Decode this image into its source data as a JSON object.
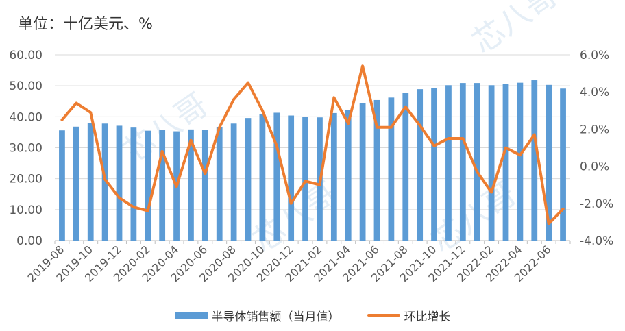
{
  "header": {
    "unit_label": "单位：十亿美元、%"
  },
  "legend": {
    "bar_label": "半导体销售额（当月值）",
    "line_label": "环比增长"
  },
  "colors": {
    "bar": "#5b9bd5",
    "line": "#ed7d31",
    "grid": "#d9d9d9",
    "axis": "#bfbfbf",
    "text": "#595959",
    "watermark": "#cfe0ee"
  },
  "watermark": "芯八哥",
  "chart_data": {
    "type": "bar",
    "x": [
      "2019-08",
      "2019-09",
      "2019-10",
      "2019-11",
      "2019-12",
      "2020-01",
      "2020-02",
      "2020-03",
      "2020-04",
      "2020-05",
      "2020-06",
      "2020-07",
      "2020-08",
      "2020-09",
      "2020-10",
      "2020-11",
      "2020-12",
      "2021-01",
      "2021-02",
      "2021-03",
      "2021-04",
      "2021-05",
      "2021-06",
      "2021-07",
      "2021-08",
      "2021-09",
      "2021-10",
      "2021-11",
      "2021-12",
      "2022-01",
      "2022-02",
      "2022-03",
      "2022-04",
      "2022-05",
      "2022-06",
      "2022-07"
    ],
    "x_tick_labels": [
      "2019-08",
      "2019-10",
      "2019-12",
      "2020-02",
      "2020-04",
      "2020-06",
      "2020-08",
      "2020-10",
      "2020-12",
      "2021-02",
      "2021-04",
      "2021-06",
      "2021-08",
      "2021-10",
      "2021-12",
      "2022-02",
      "2022-04",
      "2022-06"
    ],
    "series": [
      {
        "name": "半导体销售额（当月值）",
        "type": "bar",
        "axis": "left",
        "values": [
          35.6,
          36.8,
          38.0,
          37.8,
          37.1,
          36.5,
          35.5,
          35.7,
          35.3,
          35.9,
          35.8,
          36.6,
          37.8,
          39.6,
          40.8,
          41.3,
          40.4,
          40.0,
          39.8,
          41.2,
          42.2,
          44.3,
          45.4,
          46.2,
          47.8,
          48.9,
          49.3,
          50.2,
          50.9,
          50.9,
          50.2,
          50.6,
          51.0,
          51.8,
          50.3,
          49.1
        ]
      },
      {
        "name": "环比增长",
        "type": "line",
        "axis": "right",
        "values": [
          2.5,
          3.4,
          2.9,
          -0.7,
          -1.7,
          -2.2,
          -2.4,
          0.8,
          -1.1,
          1.4,
          -0.4,
          2.1,
          3.6,
          4.5,
          3.0,
          1.1,
          -2.0,
          -0.8,
          -1.0,
          3.7,
          2.3,
          5.4,
          2.1,
          2.1,
          3.2,
          2.2,
          1.1,
          1.5,
          1.5,
          -0.3,
          -1.4,
          1.0,
          0.6,
          1.7,
          -3.1,
          -2.3
        ]
      }
    ],
    "y_left": {
      "min": 0,
      "max": 60,
      "step": 10,
      "tick_labels": [
        "0.00",
        "10.00",
        "20.00",
        "30.00",
        "40.00",
        "50.00",
        "60.00"
      ]
    },
    "y_right": {
      "min": -4,
      "max": 6,
      "step": 2,
      "tick_labels": [
        "-4.0%",
        "-2.0%",
        "0.0%",
        "2.0%",
        "4.0%",
        "6.0%"
      ]
    },
    "grid": true,
    "legend_position": "bottom"
  }
}
